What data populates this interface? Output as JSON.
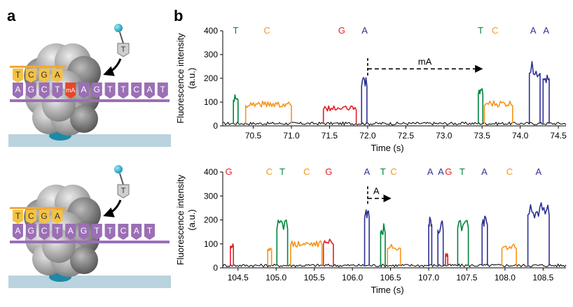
{
  "panel_labels": {
    "a": "a",
    "b": "b"
  },
  "base_colors": {
    "A": "#2e3192",
    "C": "#f7941d",
    "G": "#e31e24",
    "T": "#00843d",
    "baseline": "#111111"
  },
  "schematic": {
    "top": {
      "template_letters": [
        "A",
        "G",
        "C",
        "T",
        "mA",
        "A",
        "G",
        "T",
        "T",
        "C",
        "A",
        "T"
      ],
      "primer_letters": [
        "T",
        "C",
        "G",
        "A"
      ],
      "incoming_nucleotide": "T"
    },
    "bottom": {
      "template_letters": [
        "A",
        "G",
        "C",
        "T",
        "A",
        "G",
        "T",
        "T",
        "C",
        "A",
        "T"
      ],
      "primer_letters": [
        "T",
        "C",
        "G",
        "A"
      ],
      "incoming_nucleotide": "T"
    }
  },
  "chart_data": [
    {
      "type": "line",
      "title": "",
      "xlabel": "Time (s)",
      "ylabel_line1": "Fluorescence intensity",
      "ylabel_line2": "(a.u.)",
      "xlim": [
        70.1,
        74.6
      ],
      "ylim": [
        0,
        400
      ],
      "xticks": [
        70.5,
        71.0,
        71.5,
        72.0,
        72.5,
        73.0,
        73.5,
        74.0,
        74.5
      ],
      "xtick_labels": [
        "70.5",
        "71.0",
        "71.5",
        "72.0",
        "72.5",
        "73.0",
        "73.5",
        "74.0",
        "74.5"
      ],
      "yticks": [
        0,
        100,
        200,
        300,
        400
      ],
      "ytick_labels": [
        "0",
        "100",
        "200",
        "300",
        "400"
      ],
      "baseline_level": 10,
      "pulses": [
        {
          "base": "T",
          "start": 70.24,
          "end": 70.3,
          "level": 120
        },
        {
          "base": "C",
          "start": 70.4,
          "end": 71.0,
          "level": 95
        },
        {
          "base": "G",
          "start": 71.42,
          "end": 71.85,
          "level": 75
        },
        {
          "base": "A",
          "start": 71.92,
          "end": 71.99,
          "level": 185
        },
        {
          "base": "T",
          "start": 73.45,
          "end": 73.51,
          "level": 150
        },
        {
          "base": "C",
          "start": 73.53,
          "end": 73.9,
          "level": 95
        },
        {
          "base": "A",
          "start": 74.12,
          "end": 74.26,
          "level": 245
        },
        {
          "base": "A",
          "start": 74.3,
          "end": 74.38,
          "level": 220
        }
      ],
      "base_calls": [
        {
          "letter": "T",
          "x": 70.27
        },
        {
          "letter": "C",
          "x": 70.68
        },
        {
          "letter": "G",
          "x": 71.66
        },
        {
          "letter": "A",
          "x": 71.96
        },
        {
          "letter": "T",
          "x": 73.48
        },
        {
          "letter": "C",
          "x": 73.67
        },
        {
          "letter": "A",
          "x": 74.17
        },
        {
          "letter": "A",
          "x": 74.34
        }
      ],
      "annotation": {
        "text": "mA",
        "start": 72.0,
        "end": 73.5,
        "y": 240,
        "bracket_top": 285
      }
    },
    {
      "type": "line",
      "title": "",
      "xlabel": "Time (s)",
      "ylabel_line1": "Fluorescence intensity",
      "ylabel_line2": "(a.u.)",
      "xlim": [
        104.3,
        108.8
      ],
      "ylim": [
        0,
        400
      ],
      "xticks": [
        104.5,
        105.0,
        105.5,
        106.0,
        106.5,
        107.0,
        107.5,
        108.0,
        108.5
      ],
      "xtick_labels": [
        "104.5",
        "105.0",
        "105.5",
        "106.0",
        "106.5",
        "107.0",
        "107.5",
        "108.0",
        "108.5"
      ],
      "yticks": [
        0,
        100,
        200,
        300,
        400
      ],
      "ytick_labels": [
        "0",
        "100",
        "200",
        "300",
        "400"
      ],
      "baseline_level": 10,
      "pulses": [
        {
          "base": "G",
          "start": 104.4,
          "end": 104.44,
          "level": 100
        },
        {
          "base": "C",
          "start": 104.89,
          "end": 104.94,
          "level": 85
        },
        {
          "base": "T",
          "start": 105.01,
          "end": 105.15,
          "level": 180
        },
        {
          "base": "C",
          "start": 105.19,
          "end": 105.6,
          "level": 105
        },
        {
          "base": "G",
          "start": 105.62,
          "end": 105.75,
          "level": 110
        },
        {
          "base": "A",
          "start": 106.16,
          "end": 106.22,
          "level": 230
        },
        {
          "base": "T",
          "start": 106.37,
          "end": 106.43,
          "level": 165
        },
        {
          "base": "C",
          "start": 106.46,
          "end": 106.63,
          "level": 90
        },
        {
          "base": "A",
          "start": 107.0,
          "end": 107.04,
          "level": 200
        },
        {
          "base": "A",
          "start": 107.12,
          "end": 107.19,
          "level": 175
        },
        {
          "base": "G",
          "start": 107.22,
          "end": 107.25,
          "level": 55
        },
        {
          "base": "T",
          "start": 107.38,
          "end": 107.52,
          "level": 185
        },
        {
          "base": "A",
          "start": 107.7,
          "end": 107.77,
          "level": 200
        },
        {
          "base": "C",
          "start": 107.96,
          "end": 108.15,
          "level": 90
        },
        {
          "base": "A",
          "start": 108.3,
          "end": 108.58,
          "level": 245
        }
      ],
      "base_calls": [
        {
          "letter": "G",
          "x": 104.38
        },
        {
          "letter": "C",
          "x": 104.91
        },
        {
          "letter": "T",
          "x": 105.08
        },
        {
          "letter": "C",
          "x": 105.4
        },
        {
          "letter": "G",
          "x": 105.69
        },
        {
          "letter": "A",
          "x": 106.19
        },
        {
          "letter": "T",
          "x": 106.4
        },
        {
          "letter": "C",
          "x": 106.54
        },
        {
          "letter": "A",
          "x": 107.02
        },
        {
          "letter": "A",
          "x": 107.16
        },
        {
          "letter": "G",
          "x": 107.26
        },
        {
          "letter": "T",
          "x": 107.44
        },
        {
          "letter": "A",
          "x": 107.73
        },
        {
          "letter": "C",
          "x": 108.06
        },
        {
          "letter": "A",
          "x": 108.44
        }
      ],
      "annotation": {
        "text": "A",
        "start": 106.2,
        "end": 106.5,
        "y": 290,
        "bracket_top": 340
      }
    }
  ]
}
